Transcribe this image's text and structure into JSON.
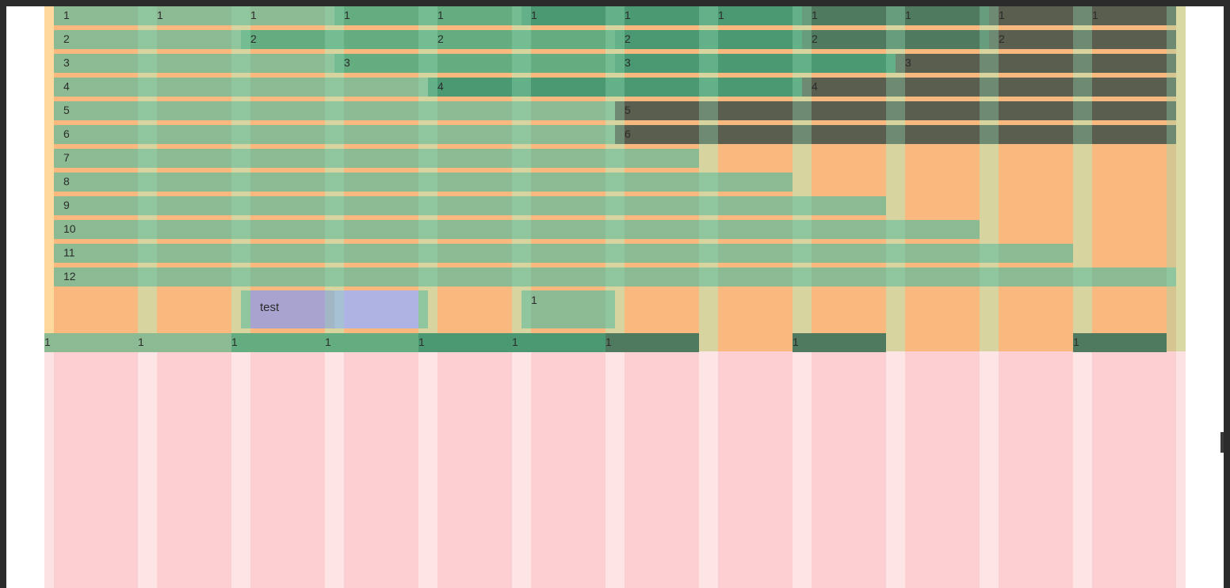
{
  "rows": [
    {
      "label": "1",
      "cells": 12
    },
    {
      "label": "2",
      "cells": 6
    },
    {
      "label": "3",
      "cells": 4
    },
    {
      "label": "4",
      "cells": 3
    },
    {
      "label": "5",
      "cells": 2
    },
    {
      "label": "6",
      "cells": 2
    },
    {
      "label": "7",
      "cells": 1
    },
    {
      "label": "8",
      "cells": 1
    },
    {
      "label": "9",
      "cells": 1
    },
    {
      "label": "10",
      "cells": 1
    },
    {
      "label": "11",
      "cells": 1
    },
    {
      "label": "12",
      "cells": 1
    }
  ],
  "test_item": {
    "label": "test"
  },
  "extra_item": {
    "label": "1"
  },
  "bottom_row_label": "1",
  "colors": {
    "outer": "#fed89c",
    "inner": "#f9b97e",
    "pink": "#fcd0d2",
    "cell_light": "#8cbb93",
    "cell_mid": "#63ad81",
    "cell_dark": "#4f7a5f",
    "test": "#a8a3cf"
  }
}
